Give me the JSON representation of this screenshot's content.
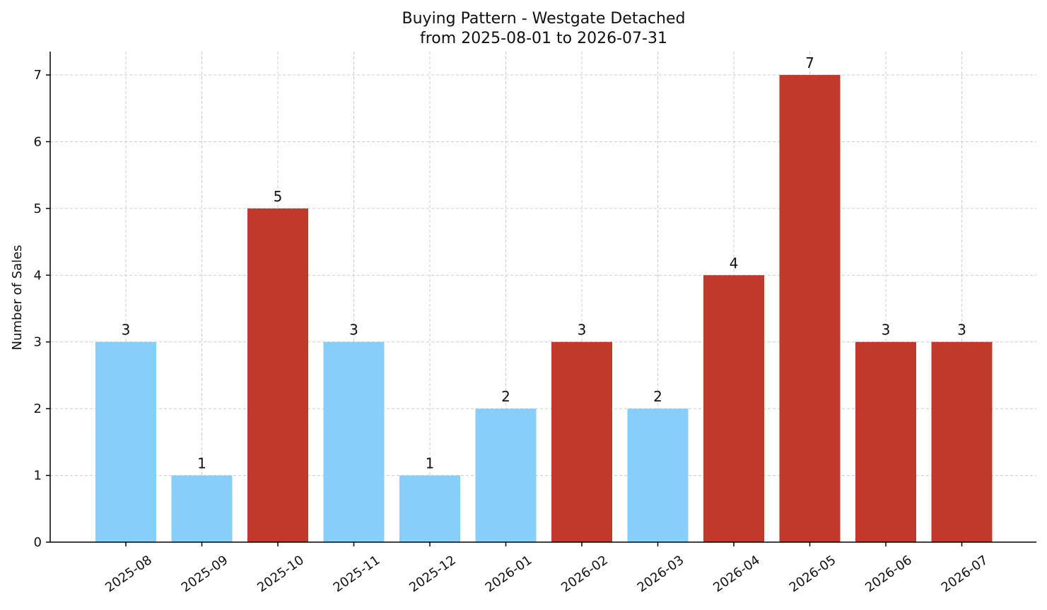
{
  "chart_data": {
    "type": "bar",
    "title": "Buying Pattern - Westgate Detached",
    "subtitle": "from 2025-08-01 to 2026-07-31",
    "xlabel": "",
    "ylabel": "Number of Sales",
    "ylim": [
      0,
      7.35
    ],
    "yticks": [
      0,
      1,
      2,
      3,
      4,
      5,
      6,
      7
    ],
    "grid": true,
    "categories": [
      "2025-08",
      "2025-09",
      "2025-10",
      "2025-11",
      "2025-12",
      "2026-01",
      "2026-02",
      "2026-03",
      "2026-04",
      "2026-05",
      "2026-06",
      "2026-07"
    ],
    "values": [
      3,
      1,
      5,
      3,
      1,
      2,
      3,
      2,
      4,
      7,
      3,
      3
    ],
    "bar_colors": [
      "#87cefa",
      "#87cefa",
      "#c0392b",
      "#87cefa",
      "#87cefa",
      "#87cefa",
      "#c0392b",
      "#87cefa",
      "#c0392b",
      "#c0392b",
      "#c0392b",
      "#c0392b"
    ]
  }
}
